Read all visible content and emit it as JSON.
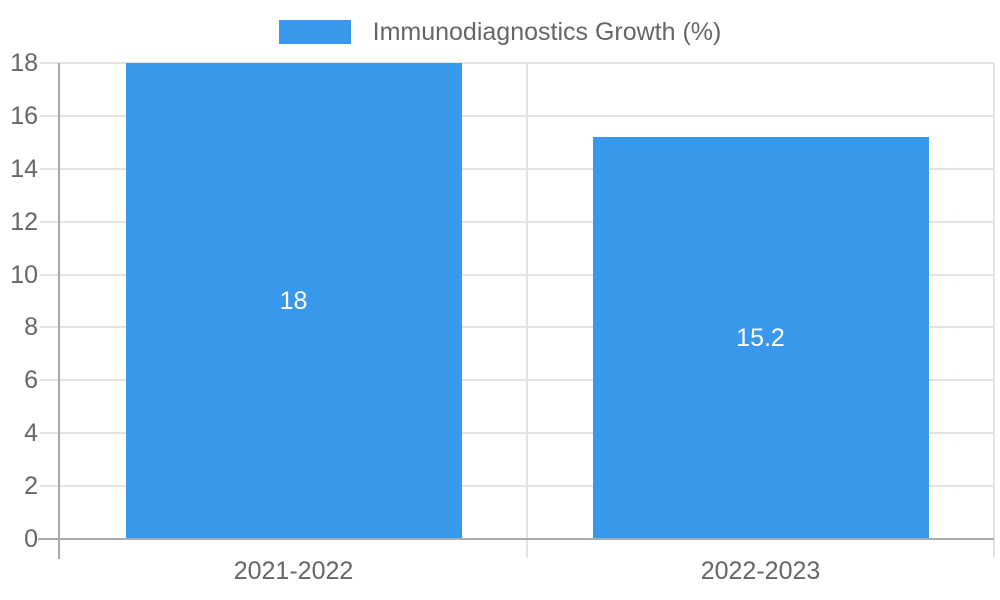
{
  "legend": {
    "label": "Immunodiagnostics Growth (%)"
  },
  "colors": {
    "bar": "#3899ec",
    "grid": "#e3e3e3",
    "axis": "#a9a9a9",
    "text": "#666666",
    "value_label": "#ffffff",
    "background": "#ffffff"
  },
  "chart_data": {
    "type": "bar",
    "title": "",
    "xlabel": "",
    "ylabel": "",
    "categories": [
      "2021-2022",
      "2022-2023"
    ],
    "series": [
      {
        "name": "Immunodiagnostics Growth (%)",
        "values": [
          18,
          15.2
        ]
      }
    ],
    "value_labels": [
      "18",
      "15.2"
    ],
    "ylim": [
      0,
      18
    ],
    "yticks": [
      0,
      2,
      4,
      6,
      8,
      10,
      12,
      14,
      16,
      18
    ],
    "grid": true,
    "legend_position": "top"
  }
}
